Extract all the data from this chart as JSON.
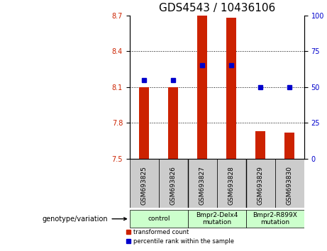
{
  "title": "GDS4543 / 10436106",
  "categories": [
    "GSM693825",
    "GSM693826",
    "GSM693827",
    "GSM693828",
    "GSM693829",
    "GSM693830"
  ],
  "bar_values": [
    8.1,
    8.1,
    8.7,
    8.68,
    7.73,
    7.72
  ],
  "bar_bottom": 7.5,
  "percentile_values": [
    55,
    55,
    65,
    65,
    50,
    50
  ],
  "ylim_left": [
    7.5,
    8.7
  ],
  "ylim_right": [
    0,
    100
  ],
  "yticks_left": [
    7.5,
    7.8,
    8.1,
    8.4,
    8.7
  ],
  "yticks_right": [
    0,
    25,
    50,
    75,
    100
  ],
  "bar_color": "#cc2200",
  "dot_color": "#0000cc",
  "grid_color": "#000000",
  "bg_plot": "#ffffff",
  "bg_sample": "#cccccc",
  "genotype_groups": [
    {
      "label": "control",
      "start": 0,
      "end": 1,
      "color": "#ccffcc"
    },
    {
      "label": "Bmpr2-Delx4\nmutation",
      "start": 2,
      "end": 3,
      "color": "#ccffcc"
    },
    {
      "label": "Bmpr2-R899X\nmutation",
      "start": 4,
      "end": 5,
      "color": "#ccffcc"
    }
  ],
  "legend_red_label": "transformed count",
  "legend_blue_label": "percentile rank within the sample",
  "xlabel_genotype": "genotype/variation",
  "title_fontsize": 11,
  "axis_fontsize": 8,
  "tick_fontsize": 7
}
